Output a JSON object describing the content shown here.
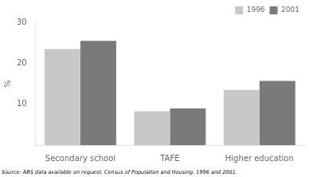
{
  "chart_data": {
    "type": "bar",
    "categories": [
      "Secondary school",
      "TAFE",
      "Higher education"
    ],
    "series": [
      {
        "name": "1996",
        "color": "#c8c8c8",
        "values": [
          23.5,
          8.3,
          13.5
        ]
      },
      {
        "name": "2001",
        "color": "#7a7a7a",
        "values": [
          25.5,
          9.0,
          15.7
        ]
      }
    ],
    "ylabel": "%",
    "ylim": [
      0,
      30
    ],
    "yticks": [
      10,
      20,
      30
    ],
    "grid": false,
    "legend": "upper right",
    "annotation": "Source: ABS data available on request, Census of Population and Housing, 1996 and 2001."
  }
}
